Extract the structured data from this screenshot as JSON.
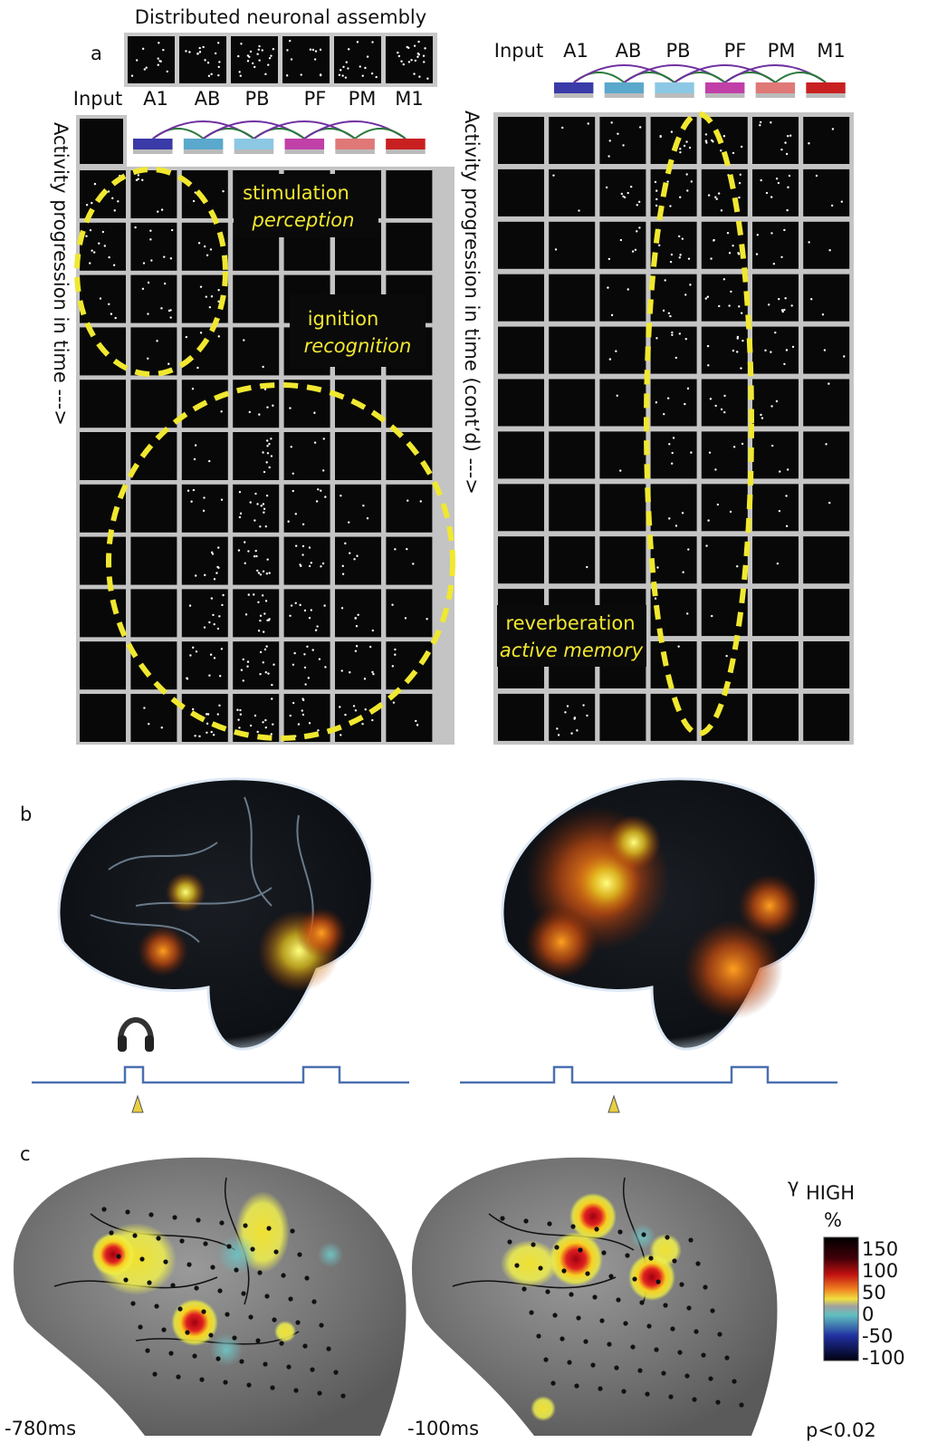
{
  "panel_a": {
    "label": "a",
    "assembly_title": "Distributed neuronal assembly",
    "left": {
      "areas": [
        "Input",
        "A1",
        "AB",
        "PB",
        "PF",
        "PM",
        "M1"
      ],
      "time_axis": "Activity progression in time --->"
    },
    "right": {
      "areas": [
        "Input",
        "A1",
        "AB",
        "PB",
        "PF",
        "PM",
        "M1"
      ],
      "time_axis": "Activity progression in time (cont’d) --->"
    },
    "phases": [
      {
        "name": "stimulation",
        "process": "perception"
      },
      {
        "name": "ignition",
        "process": "recognition"
      },
      {
        "name": "reverberation",
        "process": "active memory"
      }
    ]
  },
  "panel_b": {
    "label": "b"
  },
  "panel_c": {
    "label": "c",
    "times": [
      "-780ms",
      "-100ms"
    ],
    "colorbar": {
      "symbol": "γ",
      "subscript": "HIGH",
      "unit": "%",
      "ticks": [
        "150",
        "100",
        "50",
        "0",
        "-50",
        "-100"
      ],
      "significance": "p<0.02"
    }
  }
}
